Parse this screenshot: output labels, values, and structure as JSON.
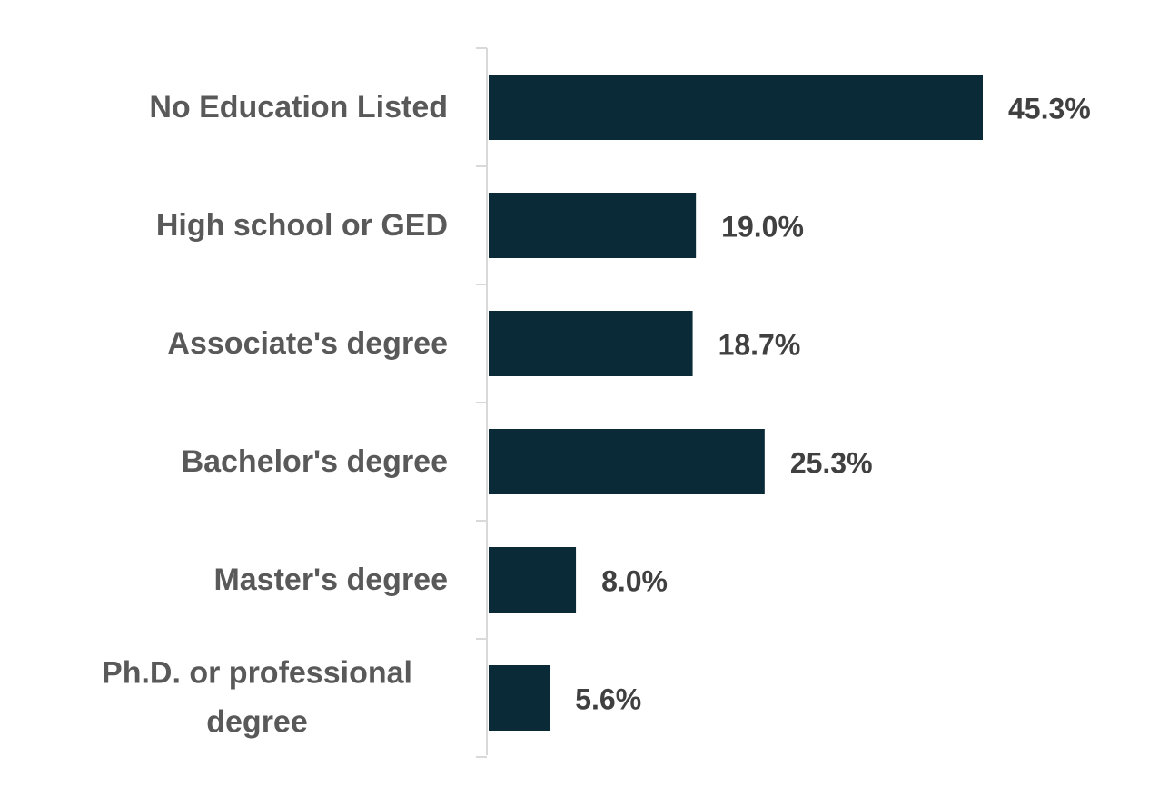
{
  "chart_data": {
    "type": "bar",
    "orientation": "horizontal",
    "categories": [
      "No Education Listed",
      "High school or GED",
      "Associate's degree",
      "Bachelor's degree",
      "Master's degree",
      "Ph.D. or professional degree"
    ],
    "values": [
      45.3,
      19.0,
      18.7,
      25.3,
      8.0,
      5.6
    ],
    "value_labels": [
      "45.3%",
      "19.0%",
      "18.7%",
      "25.3%",
      "8.0%",
      "5.6%"
    ],
    "color": "#0a2a38"
  }
}
